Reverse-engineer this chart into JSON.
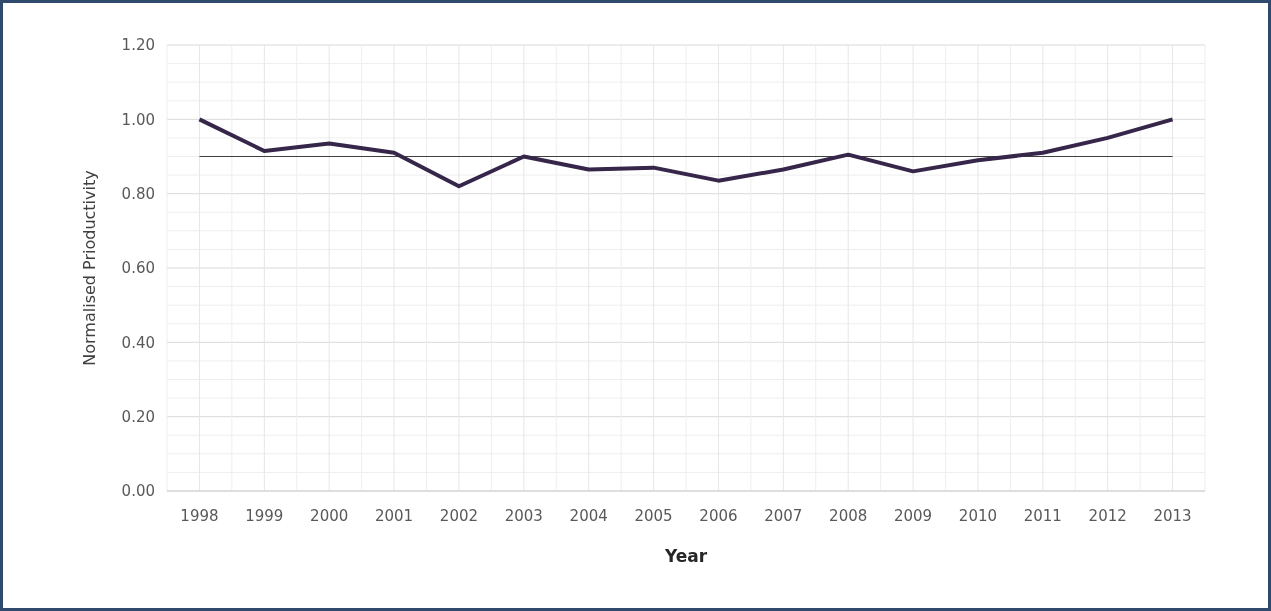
{
  "chart_data": {
    "type": "line",
    "xlabel": "Year",
    "ylabel": "Normalised Prioductivity",
    "categories": [
      "1998",
      "1999",
      "2000",
      "2001",
      "2002",
      "2003",
      "2004",
      "2005",
      "2006",
      "2007",
      "2008",
      "2009",
      "2010",
      "2011",
      "2012",
      "2013"
    ],
    "series": [
      {
        "color": "#35264a",
        "values": [
          1.0,
          0.915,
          0.935,
          0.91,
          0.82,
          0.9,
          0.865,
          0.87,
          0.835,
          0.865,
          0.905,
          0.86,
          0.89,
          0.91,
          0.95,
          1.0
        ]
      }
    ],
    "ref_lines": [
      {
        "axis": "y",
        "value": 0.9,
        "color": "#404040"
      }
    ],
    "ylim": [
      0,
      1.2
    ],
    "yticks": [
      {
        "value": 0,
        "label": "0.00"
      },
      {
        "value": 0.2,
        "label": "0.20"
      },
      {
        "value": 0.4,
        "label": "0.40"
      },
      {
        "value": 0.6,
        "label": "0.60"
      },
      {
        "value": 0.8,
        "label": "0.80"
      },
      {
        "value": 1,
        "label": "1.00"
      },
      {
        "value": 1.2,
        "label": "1.20"
      }
    ],
    "grid": true,
    "marker": "none",
    "line_style": "solid"
  }
}
